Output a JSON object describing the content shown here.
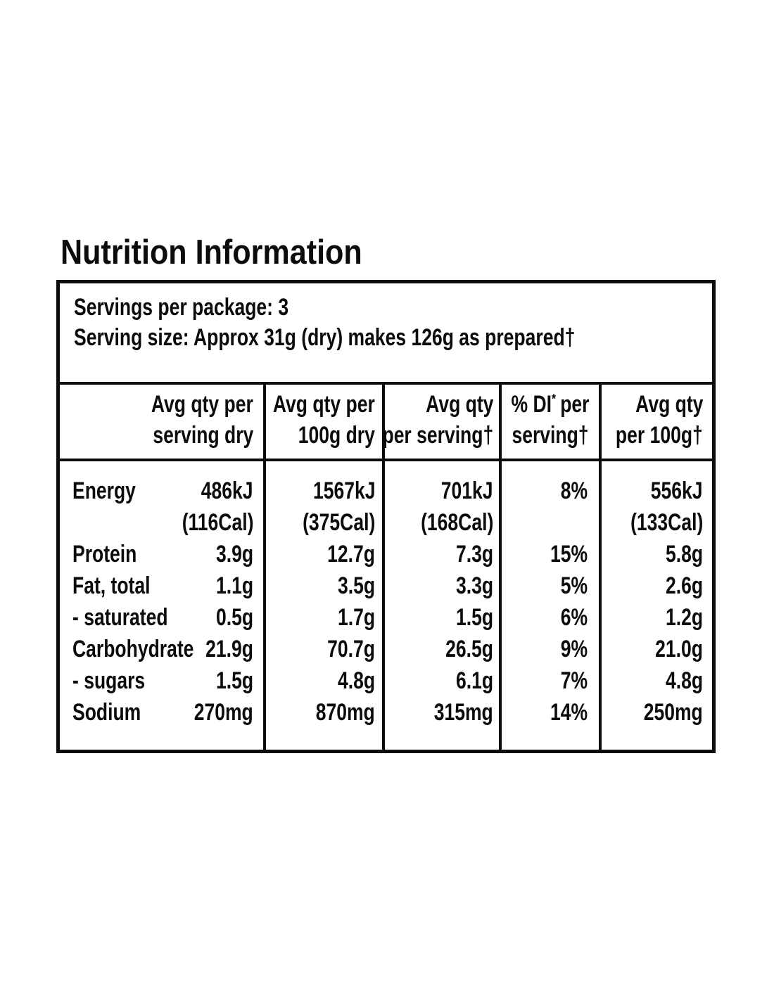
{
  "title": "Nutrition Information",
  "info": {
    "servings": "Servings per package: 3",
    "serving_size": "Serving size: Approx 31g (dry) makes 126g as prepared†"
  },
  "headers": [
    {
      "line1": "Avg qty per",
      "line2": "serving dry"
    },
    {
      "line1": "Avg qty per",
      "line2": "100g dry"
    },
    {
      "line1": "Avg qty",
      "line2": "per serving†"
    },
    {
      "pre": "% DI",
      "sup": "*",
      "post": "per",
      "line2": "serving†"
    },
    {
      "line1": "Avg qty",
      "line2": "per 100g†"
    }
  ],
  "rows": [
    {
      "label": "Energy",
      "serving_dry": "486kJ",
      "per100g_dry": "1567kJ",
      "per_serving": "701kJ",
      "di": "8%",
      "per100g": "556kJ"
    },
    {
      "label": "",
      "serving_dry": "(116Cal)",
      "per100g_dry": "(375Cal)",
      "per_serving": "(168Cal)",
      "di": "",
      "per100g": "(133Cal)"
    },
    {
      "label": "Protein",
      "serving_dry": "3.9g",
      "per100g_dry": "12.7g",
      "per_serving": "7.3g",
      "di": "15%",
      "per100g": "5.8g"
    },
    {
      "label": "Fat, total",
      "serving_dry": "1.1g",
      "per100g_dry": "3.5g",
      "per_serving": "3.3g",
      "di": "5%",
      "per100g": "2.6g"
    },
    {
      "label": "- saturated",
      "serving_dry": "0.5g",
      "per100g_dry": "1.7g",
      "per_serving": "1.5g",
      "di": "6%",
      "per100g": "1.2g"
    },
    {
      "label": "Carbohydrate",
      "serving_dry": "21.9g",
      "per100g_dry": "70.7g",
      "per_serving": "26.5g",
      "di": "9%",
      "per100g": "21.0g"
    },
    {
      "label": "- sugars",
      "serving_dry": "1.5g",
      "per100g_dry": "4.8g",
      "per_serving": "6.1g",
      "di": "7%",
      "per100g": "4.8g"
    },
    {
      "label": "Sodium",
      "serving_dry": "270mg",
      "per100g_dry": "870mg",
      "per_serving": "315mg",
      "di": "14%",
      "per100g": "250mg"
    }
  ],
  "colors": {
    "text": "#0c0c0c",
    "border": "#0c0c0c",
    "background": "#ffffff"
  }
}
